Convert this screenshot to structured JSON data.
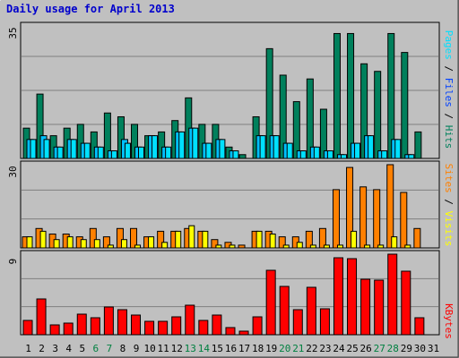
{
  "title": "Daily usage for April 2013",
  "legend": {
    "pages": "Pages",
    "files": "Files",
    "hits": "Hits",
    "sites": "Sites",
    "visits": "Visits",
    "kbytes": "KBytes",
    "sep": " / "
  },
  "colors": {
    "hits": "#00805c",
    "files": "#00c0ff",
    "pages": "#00e0ff",
    "visits": "#ffff00",
    "sites": "#ff8000",
    "kbytes": "#ff0000",
    "weekend": "#008040",
    "weekday": "#000000"
  },
  "chart_data": [
    {
      "type": "bar",
      "name": "hits-files-pages",
      "scale_label": "35",
      "ylim": [
        0,
        35
      ],
      "categories": [
        "1",
        "2",
        "3",
        "4",
        "5",
        "6",
        "7",
        "8",
        "9",
        "10",
        "11",
        "12",
        "13",
        "14",
        "15",
        "16",
        "17",
        "18",
        "19",
        "20",
        "21",
        "22",
        "23",
        "24",
        "25",
        "26",
        "27",
        "28",
        "29",
        "30",
        "31"
      ],
      "weekend_days": [
        6,
        7,
        13,
        14,
        20,
        21,
        27,
        28
      ],
      "series": [
        {
          "name": "Hits",
          "values": [
            8,
            17,
            6,
            8,
            9,
            7,
            12,
            11,
            9,
            6,
            7,
            10,
            16,
            9,
            9,
            3,
            1,
            11,
            29,
            22,
            15,
            21,
            13,
            33,
            33,
            25,
            23,
            33,
            28,
            7,
            0
          ]
        },
        {
          "name": "Files",
          "values": [
            5,
            6,
            3,
            5,
            4,
            3,
            2,
            5,
            3,
            6,
            3,
            7,
            8,
            4,
            5,
            2,
            0,
            6,
            6,
            4,
            2,
            3,
            2,
            1,
            4,
            6,
            2,
            5,
            1,
            0,
            0
          ]
        },
        {
          "name": "Pages",
          "values": [
            5,
            5,
            3,
            5,
            4,
            3,
            2,
            4,
            3,
            6,
            3,
            7,
            8,
            4,
            5,
            2,
            0,
            6,
            6,
            4,
            2,
            3,
            2,
            1,
            4,
            6,
            2,
            5,
            1,
            0,
            0
          ]
        }
      ]
    },
    {
      "type": "bar",
      "name": "visits-sites",
      "scale_label": "30",
      "ylim": [
        0,
        30
      ],
      "categories": [
        "1",
        "2",
        "3",
        "4",
        "5",
        "6",
        "7",
        "8",
        "9",
        "10",
        "11",
        "12",
        "13",
        "14",
        "15",
        "16",
        "17",
        "18",
        "19",
        "20",
        "21",
        "22",
        "23",
        "24",
        "25",
        "26",
        "27",
        "28",
        "29",
        "30",
        "31"
      ],
      "weekend_days": [
        6,
        7,
        13,
        14,
        20,
        21,
        27,
        28
      ],
      "series": [
        {
          "name": "Visits",
          "values": [
            4,
            6,
            3,
            4,
            3,
            3,
            1,
            3,
            1,
            4,
            2,
            6,
            8,
            6,
            1,
            1,
            0,
            6,
            5,
            1,
            2,
            1,
            1,
            1,
            6,
            1,
            1,
            4,
            1,
            0,
            0
          ]
        },
        {
          "name": "Sites",
          "values": [
            4,
            7,
            5,
            5,
            4,
            7,
            4,
            7,
            7,
            4,
            6,
            6,
            7,
            6,
            3,
            2,
            1,
            6,
            6,
            4,
            4,
            6,
            7,
            21,
            29,
            22,
            21,
            30,
            20,
            7,
            0
          ]
        }
      ]
    },
    {
      "type": "bar",
      "name": "kbytes",
      "scale_label": "9",
      "ylim": [
        0,
        9
      ],
      "categories": [
        "1",
        "2",
        "3",
        "4",
        "5",
        "6",
        "7",
        "8",
        "9",
        "10",
        "11",
        "12",
        "13",
        "14",
        "15",
        "16",
        "17",
        "18",
        "19",
        "20",
        "21",
        "22",
        "23",
        "24",
        "25",
        "26",
        "27",
        "28",
        "29",
        "30",
        "31"
      ],
      "weekend_days": [
        6,
        7,
        13,
        14,
        20,
        21,
        27,
        28
      ],
      "series": [
        {
          "name": "KBytes",
          "values": [
            1.6,
            4.0,
            1.1,
            1.3,
            2.3,
            1.9,
            3.1,
            2.8,
            2.2,
            1.5,
            1.5,
            2.0,
            3.3,
            1.6,
            2.2,
            0.8,
            0.4,
            2.0,
            7.2,
            5.4,
            2.8,
            5.3,
            2.9,
            8.6,
            8.5,
            6.2,
            6.1,
            9.0,
            7.1,
            1.9,
            0
          ]
        }
      ]
    }
  ]
}
